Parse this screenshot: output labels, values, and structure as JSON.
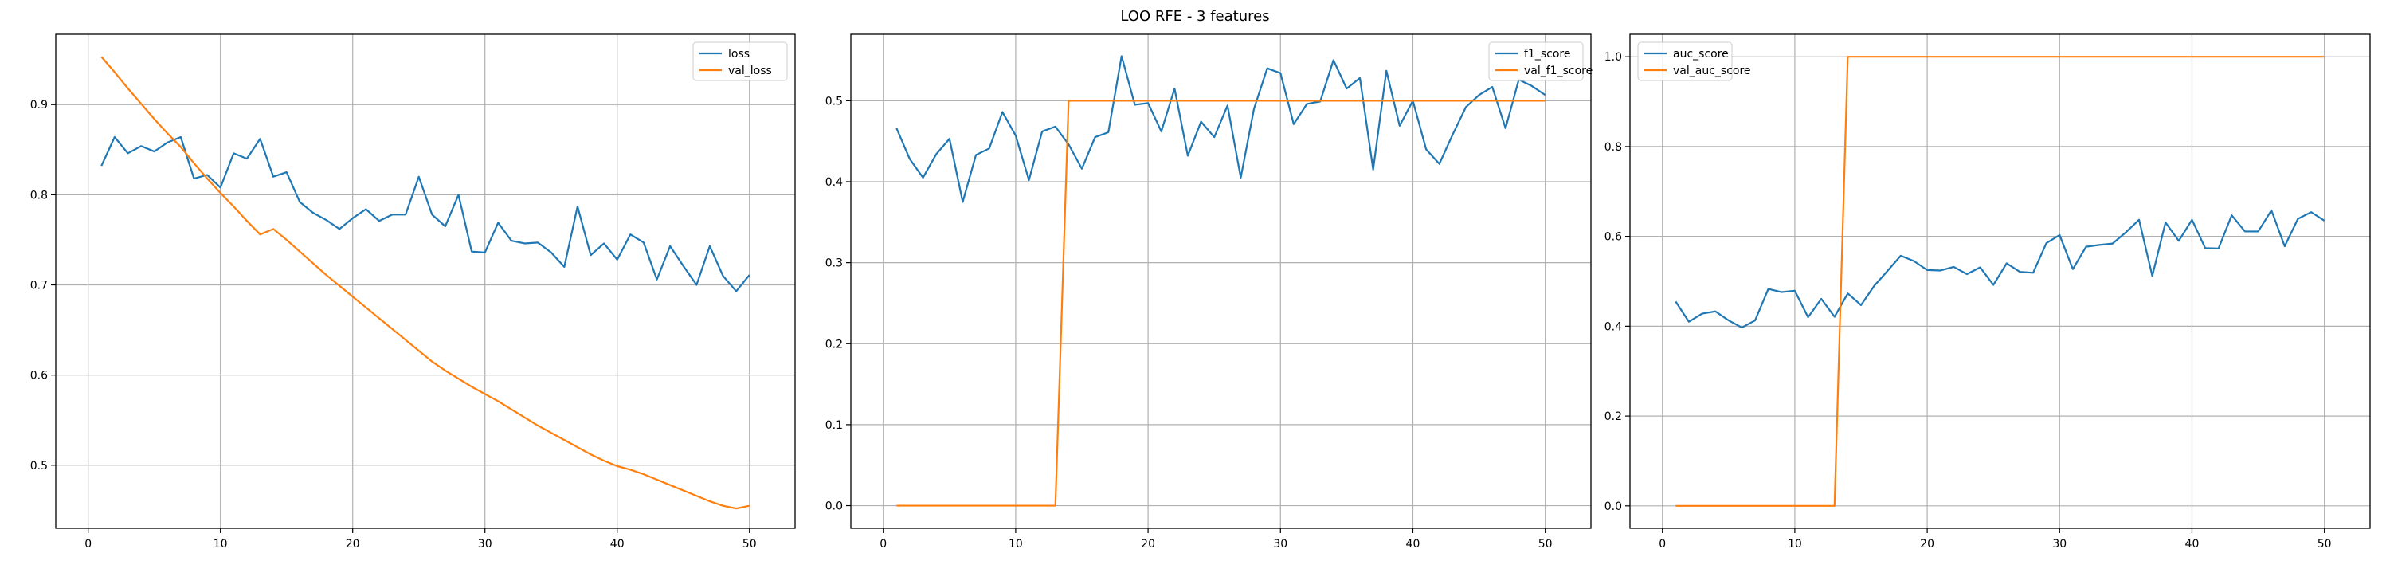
{
  "title": "LOO RFE - 3 features",
  "chart_data": [
    {
      "type": "line",
      "xlim": [
        -2.45,
        53.45
      ],
      "ylim": [
        0.43,
        0.978
      ],
      "xticks": [
        0,
        10,
        20,
        30,
        40,
        50
      ],
      "yticks": [
        0.5,
        0.6,
        0.7,
        0.8,
        0.9
      ],
      "grid": true,
      "legend_loc": "upper right",
      "series": [
        {
          "name": "loss",
          "color": "#1f77b4",
          "x": [
            1,
            2,
            3,
            4,
            5,
            6,
            7,
            8,
            9,
            10,
            11,
            12,
            13,
            14,
            15,
            16,
            17,
            18,
            19,
            20,
            21,
            22,
            23,
            24,
            25,
            26,
            27,
            28,
            29,
            30,
            31,
            32,
            33,
            34,
            35,
            36,
            37,
            38,
            39,
            40,
            41,
            42,
            43,
            44,
            45,
            46,
            47,
            48,
            49,
            50
          ],
          "y": [
            0.832,
            0.864,
            0.846,
            0.854,
            0.848,
            0.858,
            0.864,
            0.818,
            0.822,
            0.808,
            0.846,
            0.84,
            0.862,
            0.82,
            0.825,
            0.792,
            0.78,
            0.772,
            0.762,
            0.774,
            0.784,
            0.771,
            0.778,
            0.778,
            0.82,
            0.778,
            0.765,
            0.8,
            0.737,
            0.736,
            0.769,
            0.749,
            0.746,
            0.747,
            0.736,
            0.72,
            0.787,
            0.733,
            0.746,
            0.728,
            0.756,
            0.747,
            0.706,
            0.743,
            0.721,
            0.7,
            0.743,
            0.71,
            0.693,
            0.711
          ]
        },
        {
          "name": "val_loss",
          "color": "#ff7f0e",
          "x": [
            1,
            2,
            3,
            4,
            5,
            6,
            7,
            8,
            9,
            10,
            11,
            12,
            13,
            14,
            15,
            16,
            17,
            18,
            19,
            20,
            21,
            22,
            23,
            24,
            25,
            26,
            27,
            28,
            29,
            30,
            31,
            32,
            33,
            34,
            35,
            36,
            37,
            38,
            39,
            40,
            41,
            42,
            43,
            44,
            45,
            46,
            47,
            48,
            49,
            50
          ],
          "y": [
            0.953,
            0.936,
            0.918,
            0.901,
            0.884,
            0.868,
            0.853,
            0.835,
            0.818,
            0.802,
            0.787,
            0.771,
            0.756,
            0.762,
            0.75,
            0.737,
            0.724,
            0.711,
            0.699,
            0.687,
            0.675,
            0.663,
            0.651,
            0.639,
            0.627,
            0.615,
            0.605,
            0.596,
            0.587,
            0.579,
            0.571,
            0.562,
            0.553,
            0.544,
            0.536,
            0.528,
            0.52,
            0.512,
            0.505,
            0.499,
            0.495,
            0.49,
            0.484,
            0.478,
            0.472,
            0.466,
            0.46,
            0.455,
            0.452,
            0.455
          ]
        }
      ]
    },
    {
      "type": "line",
      "xlim": [
        -2.45,
        53.45
      ],
      "ylim": [
        -0.028,
        0.582
      ],
      "xticks": [
        0,
        10,
        20,
        30,
        40,
        50
      ],
      "yticks": [
        0.0,
        0.1,
        0.2,
        0.3,
        0.4,
        0.5
      ],
      "grid": true,
      "legend_loc": "upper right",
      "series": [
        {
          "name": "f1_score",
          "color": "#1f77b4",
          "x": [
            1,
            2,
            3,
            4,
            5,
            6,
            7,
            8,
            9,
            10,
            11,
            12,
            13,
            14,
            15,
            16,
            17,
            18,
            19,
            20,
            21,
            22,
            23,
            24,
            25,
            26,
            27,
            28,
            29,
            30,
            31,
            32,
            33,
            34,
            35,
            36,
            37,
            38,
            39,
            40,
            41,
            42,
            43,
            44,
            45,
            46,
            47,
            48,
            49,
            50
          ],
          "y": [
            0.466,
            0.428,
            0.405,
            0.434,
            0.453,
            0.375,
            0.433,
            0.441,
            0.486,
            0.457,
            0.402,
            0.462,
            0.468,
            0.446,
            0.416,
            0.455,
            0.461,
            0.555,
            0.495,
            0.497,
            0.462,
            0.515,
            0.432,
            0.474,
            0.455,
            0.494,
            0.405,
            0.49,
            0.54,
            0.534,
            0.471,
            0.496,
            0.499,
            0.55,
            0.515,
            0.528,
            0.415,
            0.537,
            0.469,
            0.5,
            0.44,
            0.422,
            0.458,
            0.492,
            0.507,
            0.517,
            0.466,
            0.526,
            0.518,
            0.507
          ]
        },
        {
          "name": "val_f1_score",
          "color": "#ff7f0e",
          "x": [
            1,
            2,
            3,
            4,
            5,
            6,
            7,
            8,
            9,
            10,
            11,
            12,
            13,
            14,
            15,
            16,
            17,
            18,
            19,
            20,
            21,
            22,
            23,
            24,
            25,
            26,
            27,
            28,
            29,
            30,
            31,
            32,
            33,
            34,
            35,
            36,
            37,
            38,
            39,
            40,
            41,
            42,
            43,
            44,
            45,
            46,
            47,
            48,
            49,
            50
          ],
          "y": [
            0,
            0,
            0,
            0,
            0,
            0,
            0,
            0,
            0,
            0,
            0,
            0,
            0,
            0.5,
            0.5,
            0.5,
            0.5,
            0.5,
            0.5,
            0.5,
            0.5,
            0.5,
            0.5,
            0.5,
            0.5,
            0.5,
            0.5,
            0.5,
            0.5,
            0.5,
            0.5,
            0.5,
            0.5,
            0.5,
            0.5,
            0.5,
            0.5,
            0.5,
            0.5,
            0.5,
            0.5,
            0.5,
            0.5,
            0.5,
            0.5,
            0.5,
            0.5,
            0.5,
            0.5,
            0.5
          ]
        }
      ]
    },
    {
      "type": "line",
      "xlim": [
        -2.45,
        53.45
      ],
      "ylim": [
        -0.05,
        1.05
      ],
      "xticks": [
        0,
        10,
        20,
        30,
        40,
        50
      ],
      "yticks": [
        0.0,
        0.2,
        0.4,
        0.6,
        0.8,
        1.0
      ],
      "grid": true,
      "legend_loc": "upper left",
      "series": [
        {
          "name": "auc_score",
          "color": "#1f77b4",
          "x": [
            1,
            2,
            3,
            4,
            5,
            6,
            7,
            8,
            9,
            10,
            11,
            12,
            13,
            14,
            15,
            16,
            17,
            18,
            19,
            20,
            21,
            22,
            23,
            24,
            25,
            26,
            27,
            28,
            29,
            30,
            31,
            32,
            33,
            34,
            35,
            36,
            37,
            38,
            39,
            40,
            41,
            42,
            43,
            44,
            45,
            46,
            47,
            48,
            49,
            50
          ],
          "y": [
            0.455,
            0.41,
            0.428,
            0.433,
            0.413,
            0.397,
            0.413,
            0.483,
            0.476,
            0.479,
            0.42,
            0.461,
            0.421,
            0.473,
            0.447,
            0.49,
            0.523,
            0.557,
            0.545,
            0.525,
            0.524,
            0.532,
            0.516,
            0.531,
            0.492,
            0.54,
            0.521,
            0.519,
            0.585,
            0.603,
            0.527,
            0.577,
            0.581,
            0.584,
            0.609,
            0.637,
            0.512,
            0.631,
            0.59,
            0.637,
            0.574,
            0.573,
            0.647,
            0.611,
            0.611,
            0.658,
            0.578,
            0.639,
            0.654,
            0.635
          ]
        },
        {
          "name": "val_auc_score",
          "color": "#ff7f0e",
          "x": [
            1,
            2,
            3,
            4,
            5,
            6,
            7,
            8,
            9,
            10,
            11,
            12,
            13,
            14,
            15,
            16,
            17,
            18,
            19,
            20,
            21,
            22,
            23,
            24,
            25,
            26,
            27,
            28,
            29,
            30,
            31,
            32,
            33,
            34,
            35,
            36,
            37,
            38,
            39,
            40,
            41,
            42,
            43,
            44,
            45,
            46,
            47,
            48,
            49,
            50
          ],
          "y": [
            0,
            0,
            0,
            0,
            0,
            0,
            0,
            0,
            0,
            0,
            0,
            0,
            0,
            1,
            1,
            1,
            1,
            1,
            1,
            1,
            1,
            1,
            1,
            1,
            1,
            1,
            1,
            1,
            1,
            1,
            1,
            1,
            1,
            1,
            1,
            1,
            1,
            1,
            1,
            1,
            1,
            1,
            1,
            1,
            1,
            1,
            1,
            1,
            1,
            1
          ]
        }
      ]
    }
  ]
}
